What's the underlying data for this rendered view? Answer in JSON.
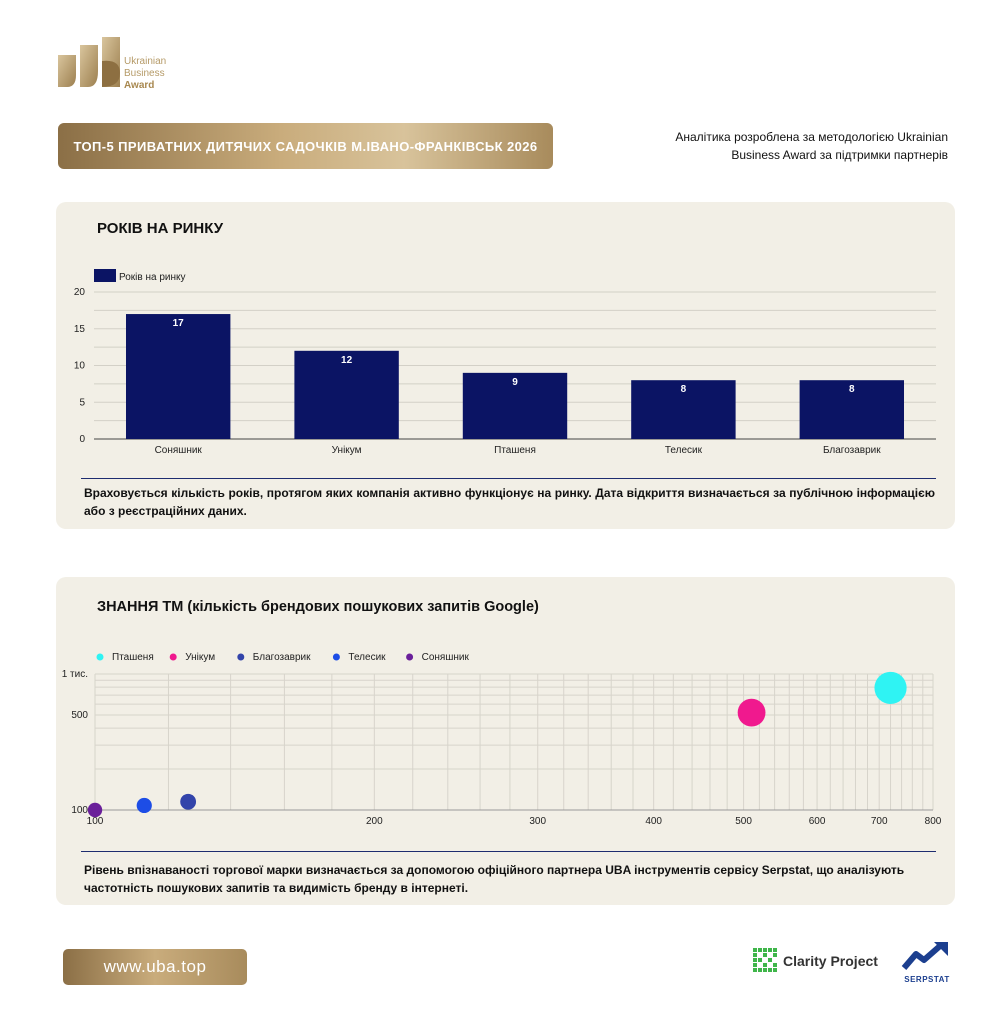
{
  "brand": {
    "logo_line1": "Ukrainian",
    "logo_line2": "Business",
    "logo_line3": "Award",
    "gold": "#b59a67"
  },
  "header": {
    "title": "ТОП-5 ПРИВАТНИХ ДИТЯЧИХ САДОЧКІВ М.ІВАНО-ФРАНКІВСЬК 2026",
    "analytics_line1": "Аналітика розроблена за методологією Ukrainian",
    "analytics_line2": "Business Award за підтримки партнерів"
  },
  "chart_data": [
    {
      "type": "bar",
      "title": "РОКІВ НА РИНКУ",
      "legend": "Років на ринку",
      "legend_position": "top-left",
      "categories": [
        "Соняшник",
        "Унікум",
        "Пташеня",
        "Телесик",
        "Благозаврик"
      ],
      "series": [
        {
          "name": "Років на ринку",
          "values": [
            17,
            12,
            9,
            8,
            8
          ],
          "color": "#0b1464"
        }
      ],
      "ylim": [
        0,
        20
      ],
      "yticks": [
        "0",
        "5",
        "10",
        "15",
        "20"
      ],
      "grid": true,
      "note": "Враховується кількість років, протягом яких компанія активно функціонує на ринку. Дата відкриття визначається за публічною інформацією або з реєстраційних даних."
    },
    {
      "type": "scatter",
      "title": "ЗНАННЯ ТМ (кількість брендових пошукових запитів Google)",
      "legend_position": "top-left",
      "x_scale": "log",
      "y_scale": "log",
      "xlim": [
        100,
        800
      ],
      "ylim": [
        100,
        1000
      ],
      "xticks": [
        "100",
        "200",
        "300",
        "400",
        "500",
        "600",
        "700",
        "800"
      ],
      "yticks": [
        "100",
        "500",
        "1 тис."
      ],
      "grid": true,
      "series": [
        {
          "name": "Пташеня",
          "x": 720,
          "y": 790,
          "color": "#2ff3f3"
        },
        {
          "name": "Унікум",
          "x": 510,
          "y": 520,
          "color": "#f0198e"
        },
        {
          "name": "Благозаврик",
          "x": 126,
          "y": 115,
          "color": "#3344aa"
        },
        {
          "name": "Телесик",
          "x": 113,
          "y": 108,
          "color": "#1d4de6"
        },
        {
          "name": "Соняшник",
          "x": 100,
          "y": 100,
          "color": "#6a1f9a"
        }
      ],
      "note": "Рівень впізнаваності торгової марки визначається за допомогою офіційного партнера UBA інструментів сервісу Serpstat, що аналізують частотність пошукових запитів та видимість бренду в інтернеті."
    }
  ],
  "footer": {
    "site": "www.uba.top",
    "partner1": "Clarity Project",
    "partner2": "SERPSTAT"
  }
}
